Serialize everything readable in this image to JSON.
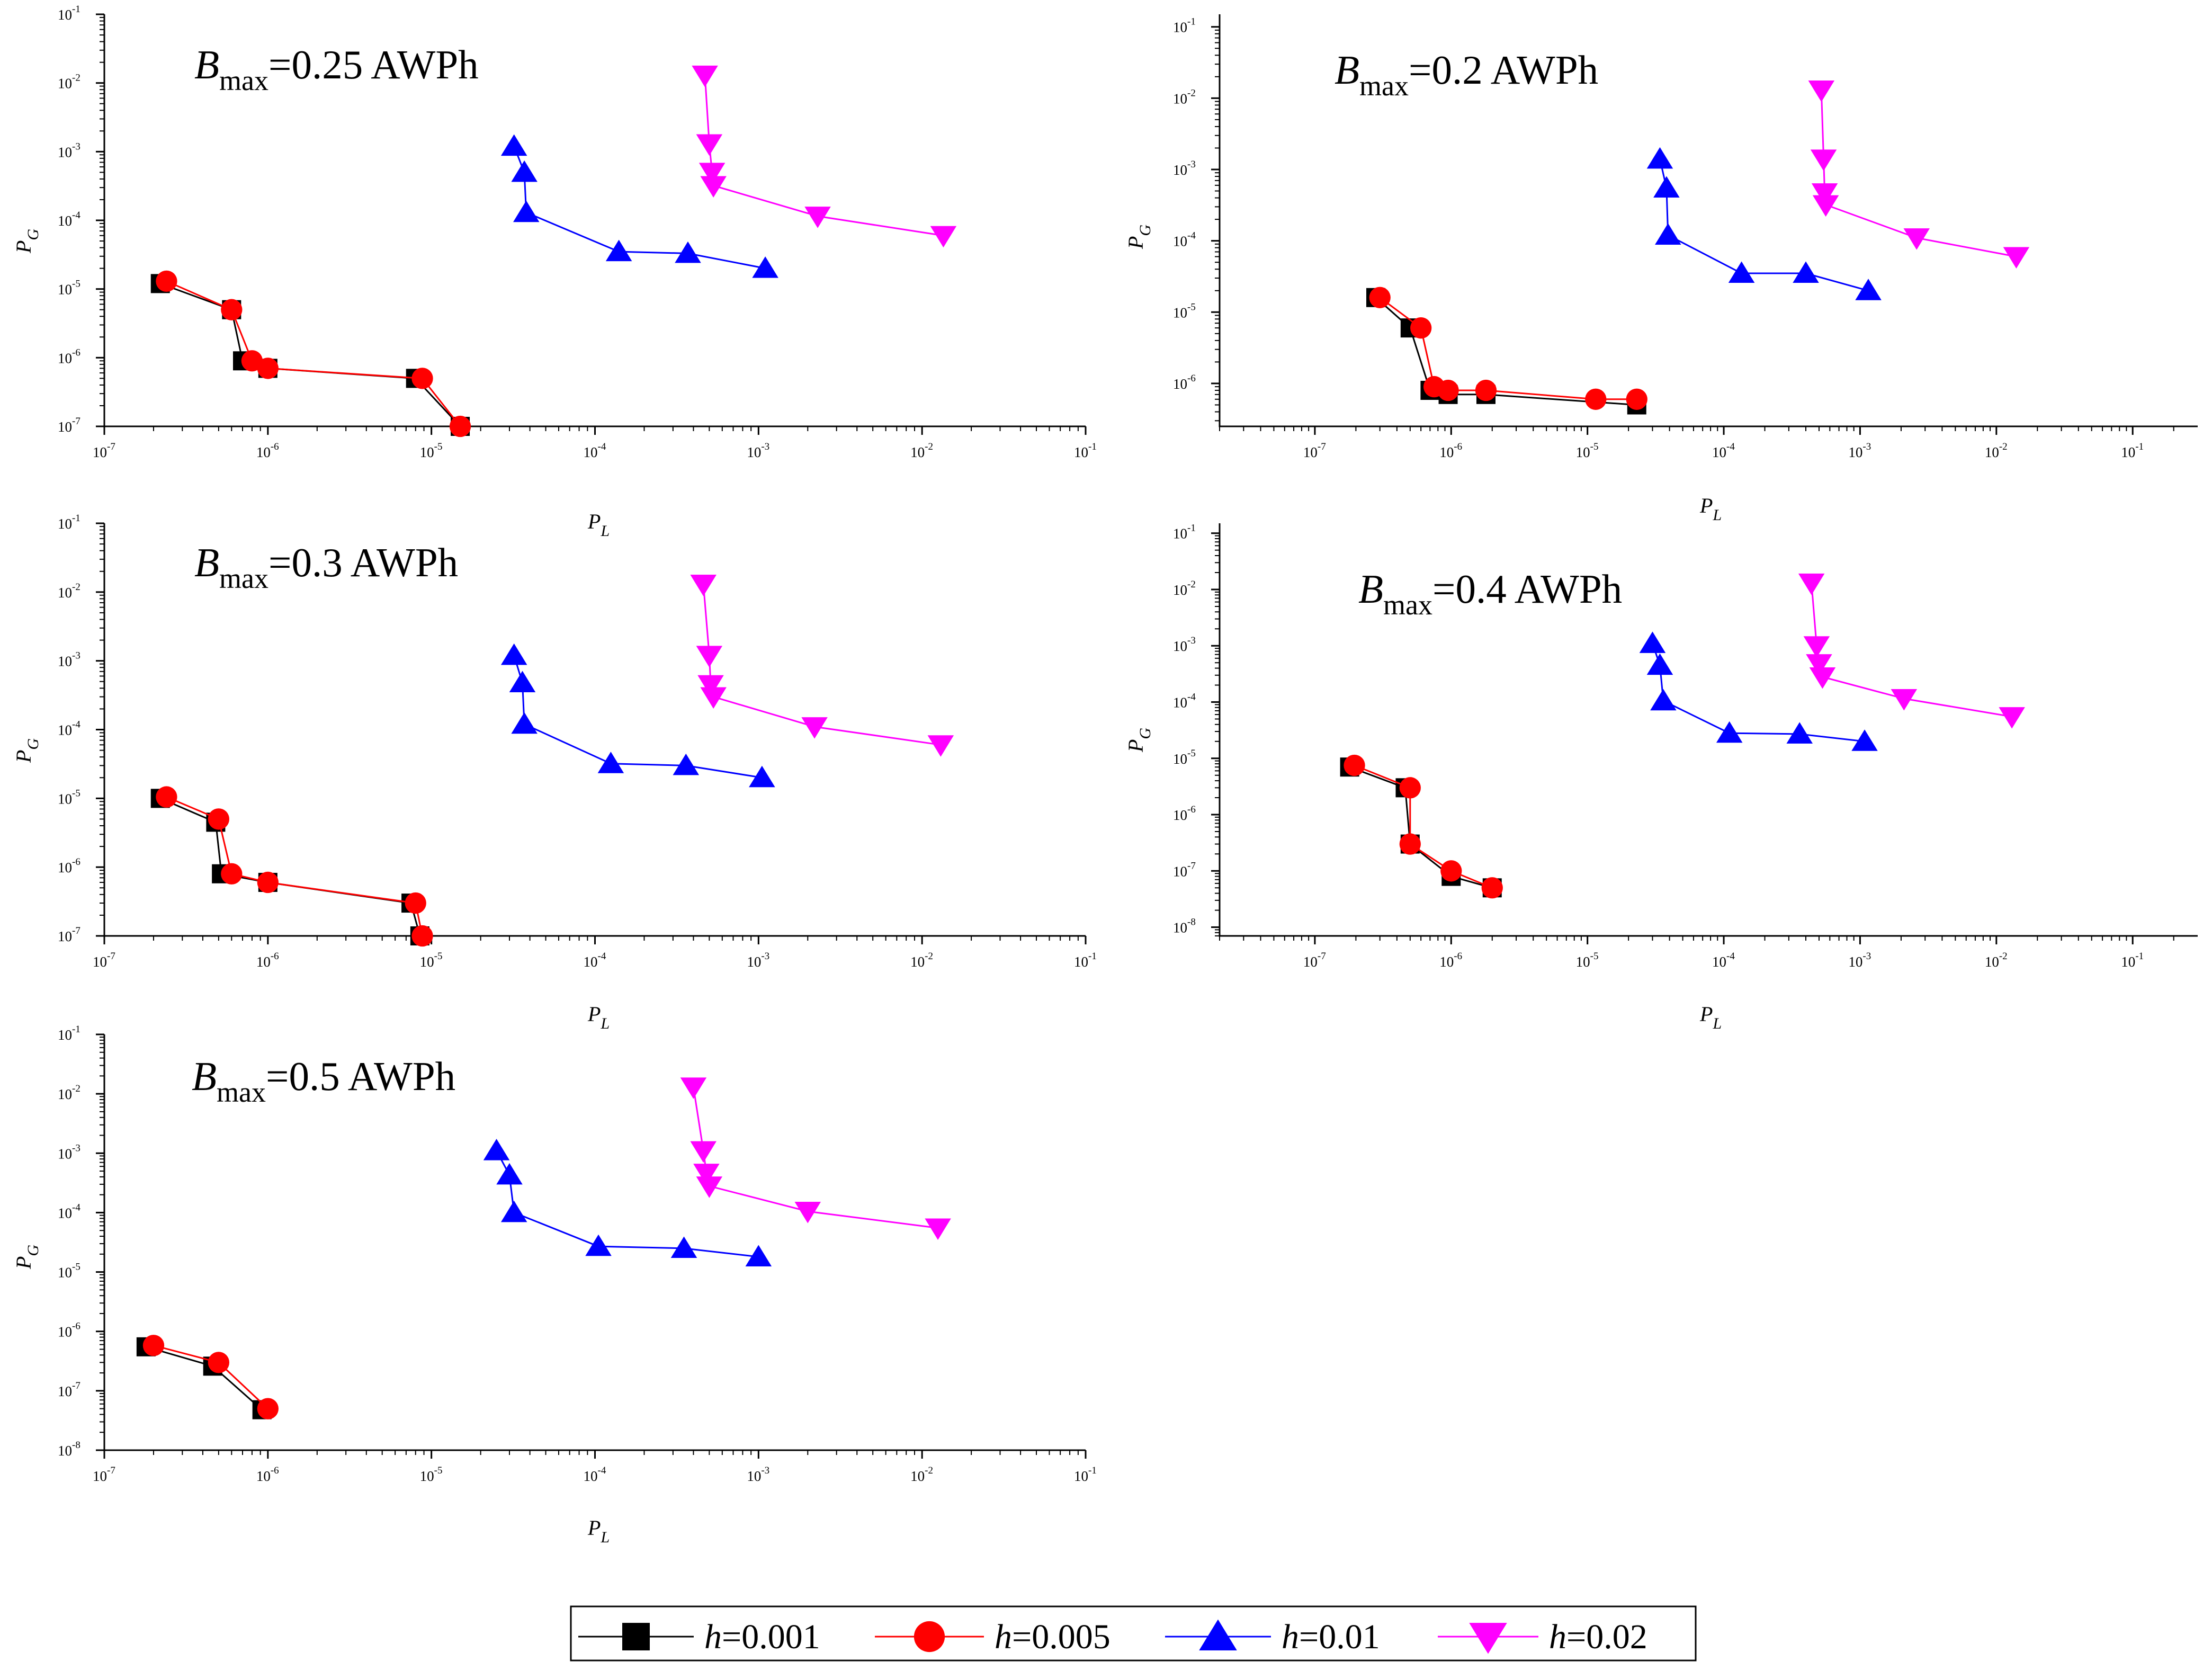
{
  "chart_data": [
    {
      "type": "scatter",
      "title": "Bmax=0.25 AWPh",
      "title_main": "B",
      "title_sub": "max",
      "title_rest": "=0.25 AWPh",
      "xlabel": "P_L",
      "xlabel_main": "P",
      "xlabel_sub": "L",
      "ylabel": "P_G",
      "ylabel_main": "P",
      "ylabel_sub": "G",
      "xscale": "log",
      "yscale": "log",
      "xlim": [
        1e-07,
        0.1
      ],
      "ylim": [
        1e-07,
        0.1
      ],
      "xticks": [
        -7,
        -6,
        -5,
        -4,
        -3,
        -2,
        -1
      ],
      "yticks": [
        -7,
        -6,
        -5,
        -4,
        -3,
        -2,
        -1
      ],
      "series": [
        {
          "name": "h=0.001",
          "x": [
            2.2e-07,
            6e-07,
            7e-07,
            1e-06,
            8e-06,
            1.5e-05
          ],
          "y": [
            1.2e-05,
            5e-06,
            9e-07,
            7e-07,
            5e-07,
            1e-07
          ]
        },
        {
          "name": "h=0.005",
          "x": [
            2.4e-07,
            6e-07,
            8e-07,
            1e-06,
            8.8e-06,
            1.5e-05
          ],
          "y": [
            1.3e-05,
            5e-06,
            9e-07,
            7e-07,
            5e-07,
            1e-07
          ]
        },
        {
          "name": "h=0.01",
          "x": [
            3.2e-05,
            3.7e-05,
            3.8e-05,
            0.00014,
            0.00037,
            0.0011
          ],
          "y": [
            0.0012,
            0.0005,
            0.00013,
            3.5e-05,
            3.3e-05,
            2e-05
          ]
        },
        {
          "name": "h=0.02",
          "x": [
            0.00047,
            0.0005,
            0.00052,
            0.00053,
            0.0023,
            0.0135
          ],
          "y": [
            0.013,
            0.0013,
            0.0005,
            0.00032,
            0.000115,
            6e-05
          ]
        }
      ]
    },
    {
      "type": "scatter",
      "title": "Bmax=0.2 AWPh",
      "title_main": "B",
      "title_sub": "max",
      "title_rest": "=0.2 AWPh",
      "xlabel": "P_L",
      "xlabel_main": "P",
      "xlabel_sub": "L",
      "ylabel": "P_G",
      "ylabel_main": "P",
      "ylabel_sub": "G",
      "xscale": "log",
      "yscale": "log",
      "xlim": [
        2e-08,
        0.3
      ],
      "ylim": [
        2.5e-07,
        0.15
      ],
      "xticks": [
        -7,
        -6,
        -5,
        -4,
        -3,
        -2,
        -1
      ],
      "yticks": [
        -6,
        -5,
        -4,
        -3,
        -2,
        -1
      ],
      "series": [
        {
          "name": "h=0.001",
          "x": [
            2.8e-07,
            5e-07,
            7e-07,
            9.5e-07,
            1.8e-06,
            2.3e-05
          ],
          "y": [
            1.6e-05,
            6e-06,
            8e-07,
            7e-07,
            7e-07,
            5e-07
          ]
        },
        {
          "name": "h=0.005",
          "x": [
            3e-07,
            6e-07,
            7.5e-07,
            9.5e-07,
            1.8e-06,
            1.15e-05,
            2.3e-05
          ],
          "y": [
            1.6e-05,
            6e-06,
            9e-07,
            8e-07,
            8e-07,
            6e-07,
            6e-07
          ]
        },
        {
          "name": "h=0.01",
          "x": [
            3.4e-05,
            3.8e-05,
            3.9e-05,
            0.000135,
            0.0004,
            0.00115
          ],
          "y": [
            0.0014,
            0.00055,
            0.00012,
            3.5e-05,
            3.5e-05,
            2e-05
          ]
        },
        {
          "name": "h=0.02",
          "x": [
            0.00052,
            0.00054,
            0.00055,
            0.00056,
            0.0026,
            0.014
          ],
          "y": [
            0.013,
            0.0014,
            0.00047,
            0.00032,
            0.00011,
            6e-05
          ]
        }
      ]
    },
    {
      "type": "scatter",
      "title": "Bmax=0.3 AWPh",
      "title_main": "B",
      "title_sub": "max",
      "title_rest": "=0.3 AWPh",
      "xlabel": "P_L",
      "xlabel_main": "P",
      "xlabel_sub": "L",
      "ylabel": "P_G",
      "ylabel_main": "P",
      "ylabel_sub": "G",
      "xscale": "log",
      "yscale": "log",
      "xlim": [
        1e-07,
        0.1
      ],
      "ylim": [
        1e-07,
        0.1
      ],
      "xticks": [
        -7,
        -6,
        -5,
        -4,
        -3,
        -2,
        -1
      ],
      "yticks": [
        -7,
        -6,
        -5,
        -4,
        -3,
        -2,
        -1
      ],
      "series": [
        {
          "name": "h=0.001",
          "x": [
            2.2e-07,
            4.8e-07,
            5.2e-07,
            1e-06,
            7.5e-06,
            8.5e-06
          ],
          "y": [
            1e-05,
            4.5e-06,
            8e-07,
            6e-07,
            3e-07,
            1e-07
          ]
        },
        {
          "name": "h=0.005",
          "x": [
            2.4e-07,
            5e-07,
            6e-07,
            1e-06,
            8e-06,
            8.8e-06
          ],
          "y": [
            1.05e-05,
            5e-06,
            8e-07,
            6e-07,
            3e-07,
            1e-07
          ]
        },
        {
          "name": "h=0.01",
          "x": [
            3.2e-05,
            3.6e-05,
            3.7e-05,
            0.000125,
            0.00036,
            0.00105
          ],
          "y": [
            0.0012,
            0.00048,
            0.00012,
            3.2e-05,
            3e-05,
            2e-05
          ]
        },
        {
          "name": "h=0.02",
          "x": [
            0.00046,
            0.0005,
            0.00051,
            0.00053,
            0.0022,
            0.013
          ],
          "y": [
            0.013,
            0.0012,
            0.00045,
            0.0003,
            0.00011,
            6e-05
          ]
        }
      ]
    },
    {
      "type": "scatter",
      "title": "Bmax=0.4 AWPh",
      "title_main": "B",
      "title_sub": "max",
      "title_rest": "=0.4 AWPh",
      "xlabel": "P_L",
      "xlabel_main": "P",
      "xlabel_sub": "L",
      "ylabel": "P_G",
      "ylabel_main": "P",
      "ylabel_sub": "G",
      "xscale": "log",
      "yscale": "log",
      "xlim": [
        2e-08,
        0.3
      ],
      "ylim": [
        7e-09,
        0.15
      ],
      "xticks": [
        -7,
        -6,
        -5,
        -4,
        -3,
        -2,
        -1
      ],
      "yticks": [
        -8,
        -7,
        -6,
        -5,
        -4,
        -3,
        -2,
        -1
      ],
      "series": [
        {
          "name": "h=0.001",
          "x": [
            1.8e-07,
            4.6e-07,
            5e-07,
            1e-06,
            2e-06
          ],
          "y": [
            7e-06,
            3e-06,
            3e-07,
            8e-08,
            5e-08
          ]
        },
        {
          "name": "h=0.005",
          "x": [
            1.95e-07,
            5e-07,
            5e-07,
            1e-06,
            2e-06
          ],
          "y": [
            7.5e-06,
            3e-06,
            3e-07,
            1e-07,
            5e-08
          ]
        },
        {
          "name": "h=0.01",
          "x": [
            3e-05,
            3.4e-05,
            3.6e-05,
            0.00011,
            0.00036,
            0.00108
          ],
          "y": [
            0.0011,
            0.00045,
            0.000105,
            2.8e-05,
            2.7e-05,
            2e-05
          ]
        },
        {
          "name": "h=0.02",
          "x": [
            0.00044,
            0.00048,
            0.0005,
            0.00053,
            0.0021,
            0.013
          ],
          "y": [
            0.013,
            0.001,
            0.00048,
            0.00028,
            0.000115,
            5.5e-05
          ]
        }
      ]
    },
    {
      "type": "scatter",
      "title": "Bmax=0.5 AWPh",
      "title_main": "B",
      "title_sub": "max",
      "title_rest": "=0.5 AWPh",
      "xlabel": "P_L",
      "xlabel_main": "P",
      "xlabel_sub": "L",
      "ylabel": "P_G",
      "ylabel_main": "P",
      "ylabel_sub": "G",
      "xscale": "log",
      "yscale": "log",
      "xlim": [
        1e-07,
        0.1
      ],
      "ylim": [
        1e-08,
        0.1
      ],
      "xticks": [
        -7,
        -6,
        -5,
        -4,
        -3,
        -2,
        -1
      ],
      "yticks": [
        -8,
        -7,
        -6,
        -5,
        -4,
        -3,
        -2,
        -1
      ],
      "series": [
        {
          "name": "h=0.001",
          "x": [
            1.8e-07,
            4.6e-07,
            9.2e-07
          ],
          "y": [
            5.5e-07,
            2.6e-07,
            4.8e-08
          ]
        },
        {
          "name": "h=0.005",
          "x": [
            2e-07,
            5e-07,
            1e-06
          ],
          "y": [
            5.8e-07,
            3e-07,
            5e-08
          ]
        },
        {
          "name": "h=0.01",
          "x": [
            2.5e-05,
            3e-05,
            3.2e-05,
            0.000105,
            0.00035,
            0.001
          ],
          "y": [
            0.0011,
            0.00043,
            0.0001,
            2.7e-05,
            2.5e-05,
            1.8e-05
          ]
        },
        {
          "name": "h=0.02",
          "x": [
            0.0004,
            0.00046,
            0.00048,
            0.0005,
            0.002,
            0.0125
          ],
          "y": [
            0.013,
            0.0011,
            0.00046,
            0.00028,
            0.000105,
            5.5e-05
          ]
        }
      ]
    }
  ],
  "legend": {
    "position": "bottom-center",
    "items": [
      {
        "var": "h",
        "eq": "=0.001",
        "color": "#000000",
        "marker": "square"
      },
      {
        "var": "h",
        "eq": "=0.005",
        "color": "#ff0000",
        "marker": "circle"
      },
      {
        "var": "h",
        "eq": "=0.01",
        "color": "#0000ff",
        "marker": "triangle-up"
      },
      {
        "var": "h",
        "eq": "=0.02",
        "color": "#ff00ff",
        "marker": "triangle-down"
      }
    ]
  },
  "tick_base": "10"
}
